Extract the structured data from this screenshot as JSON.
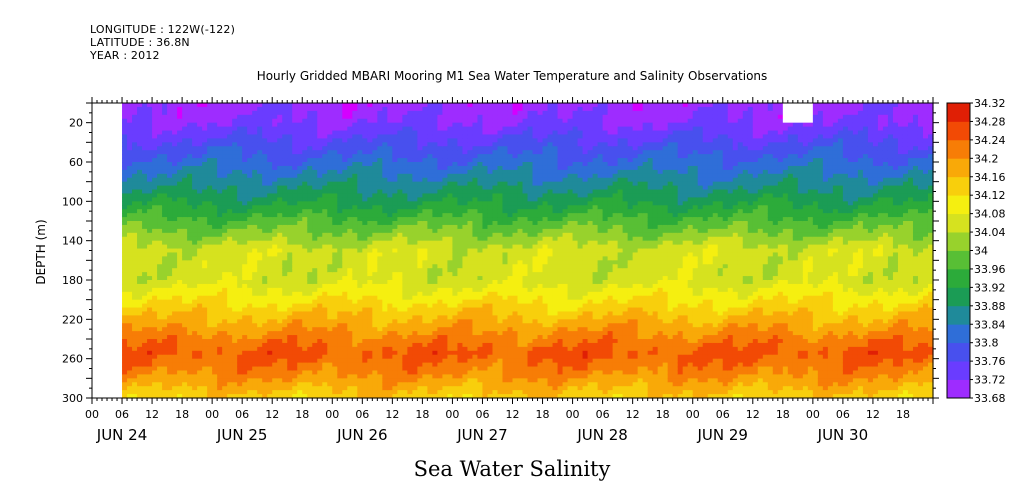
{
  "header": {
    "longitude": "LONGITUDE : 122W(-122)",
    "latitude": "LATITUDE : 36.8N",
    "year": "YEAR : 2012",
    "title": "Hourly Gridded MBARI Mooring M1 Sea Water Temperature and Salinity Observations"
  },
  "chart_data": {
    "type": "heatmap",
    "title": "Hourly Gridded MBARI Mooring M1 Sea Water Temperature and Salinity Observations",
    "xlabel": "Sea Water Salinity",
    "ylabel": "DEPTH (m)",
    "x_range": [
      "JUN 24 00",
      "JUN 30 23"
    ],
    "data_start": "JUN 24 06",
    "y_range": [
      0,
      300
    ],
    "y_ticks": [
      "20",
      "60",
      "100",
      "140",
      "180",
      "220",
      "260",
      "300"
    ],
    "hour_ticks": [
      "00",
      "06",
      "12",
      "18"
    ],
    "days": [
      "JUN 24",
      "JUN 25",
      "JUN 26",
      "JUN 27",
      "JUN 28",
      "JUN 29",
      "JUN 30"
    ],
    "colorbar": {
      "levels": [
        "34.32",
        "34.28",
        "34.24",
        "34.2",
        "34.16",
        "34.12",
        "34.08",
        "34.04",
        "34",
        "33.96",
        "33.92",
        "33.88",
        "33.84",
        "33.8",
        "33.76",
        "33.72",
        "33.68"
      ]
    },
    "depth_profile": [
      {
        "depth": 0,
        "salinity": 33.74
      },
      {
        "depth": 20,
        "salinity": 33.76
      },
      {
        "depth": 50,
        "salinity": 33.83
      },
      {
        "depth": 80,
        "salinity": 33.9
      },
      {
        "depth": 100,
        "salinity": 33.95
      },
      {
        "depth": 130,
        "salinity": 34.04
      },
      {
        "depth": 150,
        "salinity": 34.1
      },
      {
        "depth": 180,
        "salinity": 34.1
      },
      {
        "depth": 210,
        "salinity": 34.18
      },
      {
        "depth": 240,
        "salinity": 34.26
      },
      {
        "depth": 255,
        "salinity": 34.29
      },
      {
        "depth": 275,
        "salinity": 34.25
      },
      {
        "depth": 300,
        "salinity": 34.18
      }
    ],
    "missing_data": [
      {
        "from": "JUN 29 18",
        "to": "JUN 29 23",
        "depth_from": 0,
        "depth_to": 20
      }
    ]
  }
}
